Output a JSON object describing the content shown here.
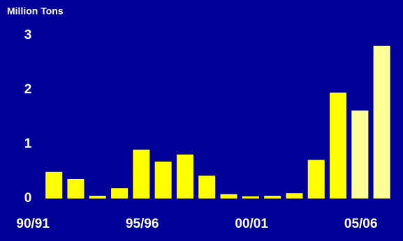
{
  "chart_data": {
    "type": "bar",
    "title": "Million Tons",
    "categories": [
      "90/91",
      null,
      null,
      null,
      null,
      "95/96",
      null,
      null,
      null,
      null,
      "00/01",
      null,
      null,
      null,
      null,
      "05/06"
    ],
    "values": [
      0.49,
      0.36,
      0.05,
      0.19,
      0.9,
      0.68,
      0.81,
      0.42,
      0.08,
      0.04,
      0.05,
      0.1,
      0.71,
      1.95,
      1.62,
      2.81
    ],
    "colors": [
      "#ffff00",
      "#ffff00",
      "#ffff00",
      "#ffff00",
      "#ffff00",
      "#ffff00",
      "#ffff00",
      "#ffff00",
      "#ffff00",
      "#ffff00",
      "#ffff00",
      "#ffff00",
      "#ffff00",
      "#ffff00",
      "#ffff99",
      "#ffff99"
    ],
    "ylim": [
      0,
      3
    ],
    "yticks": [
      0,
      1,
      2,
      3
    ],
    "grid": false
  }
}
